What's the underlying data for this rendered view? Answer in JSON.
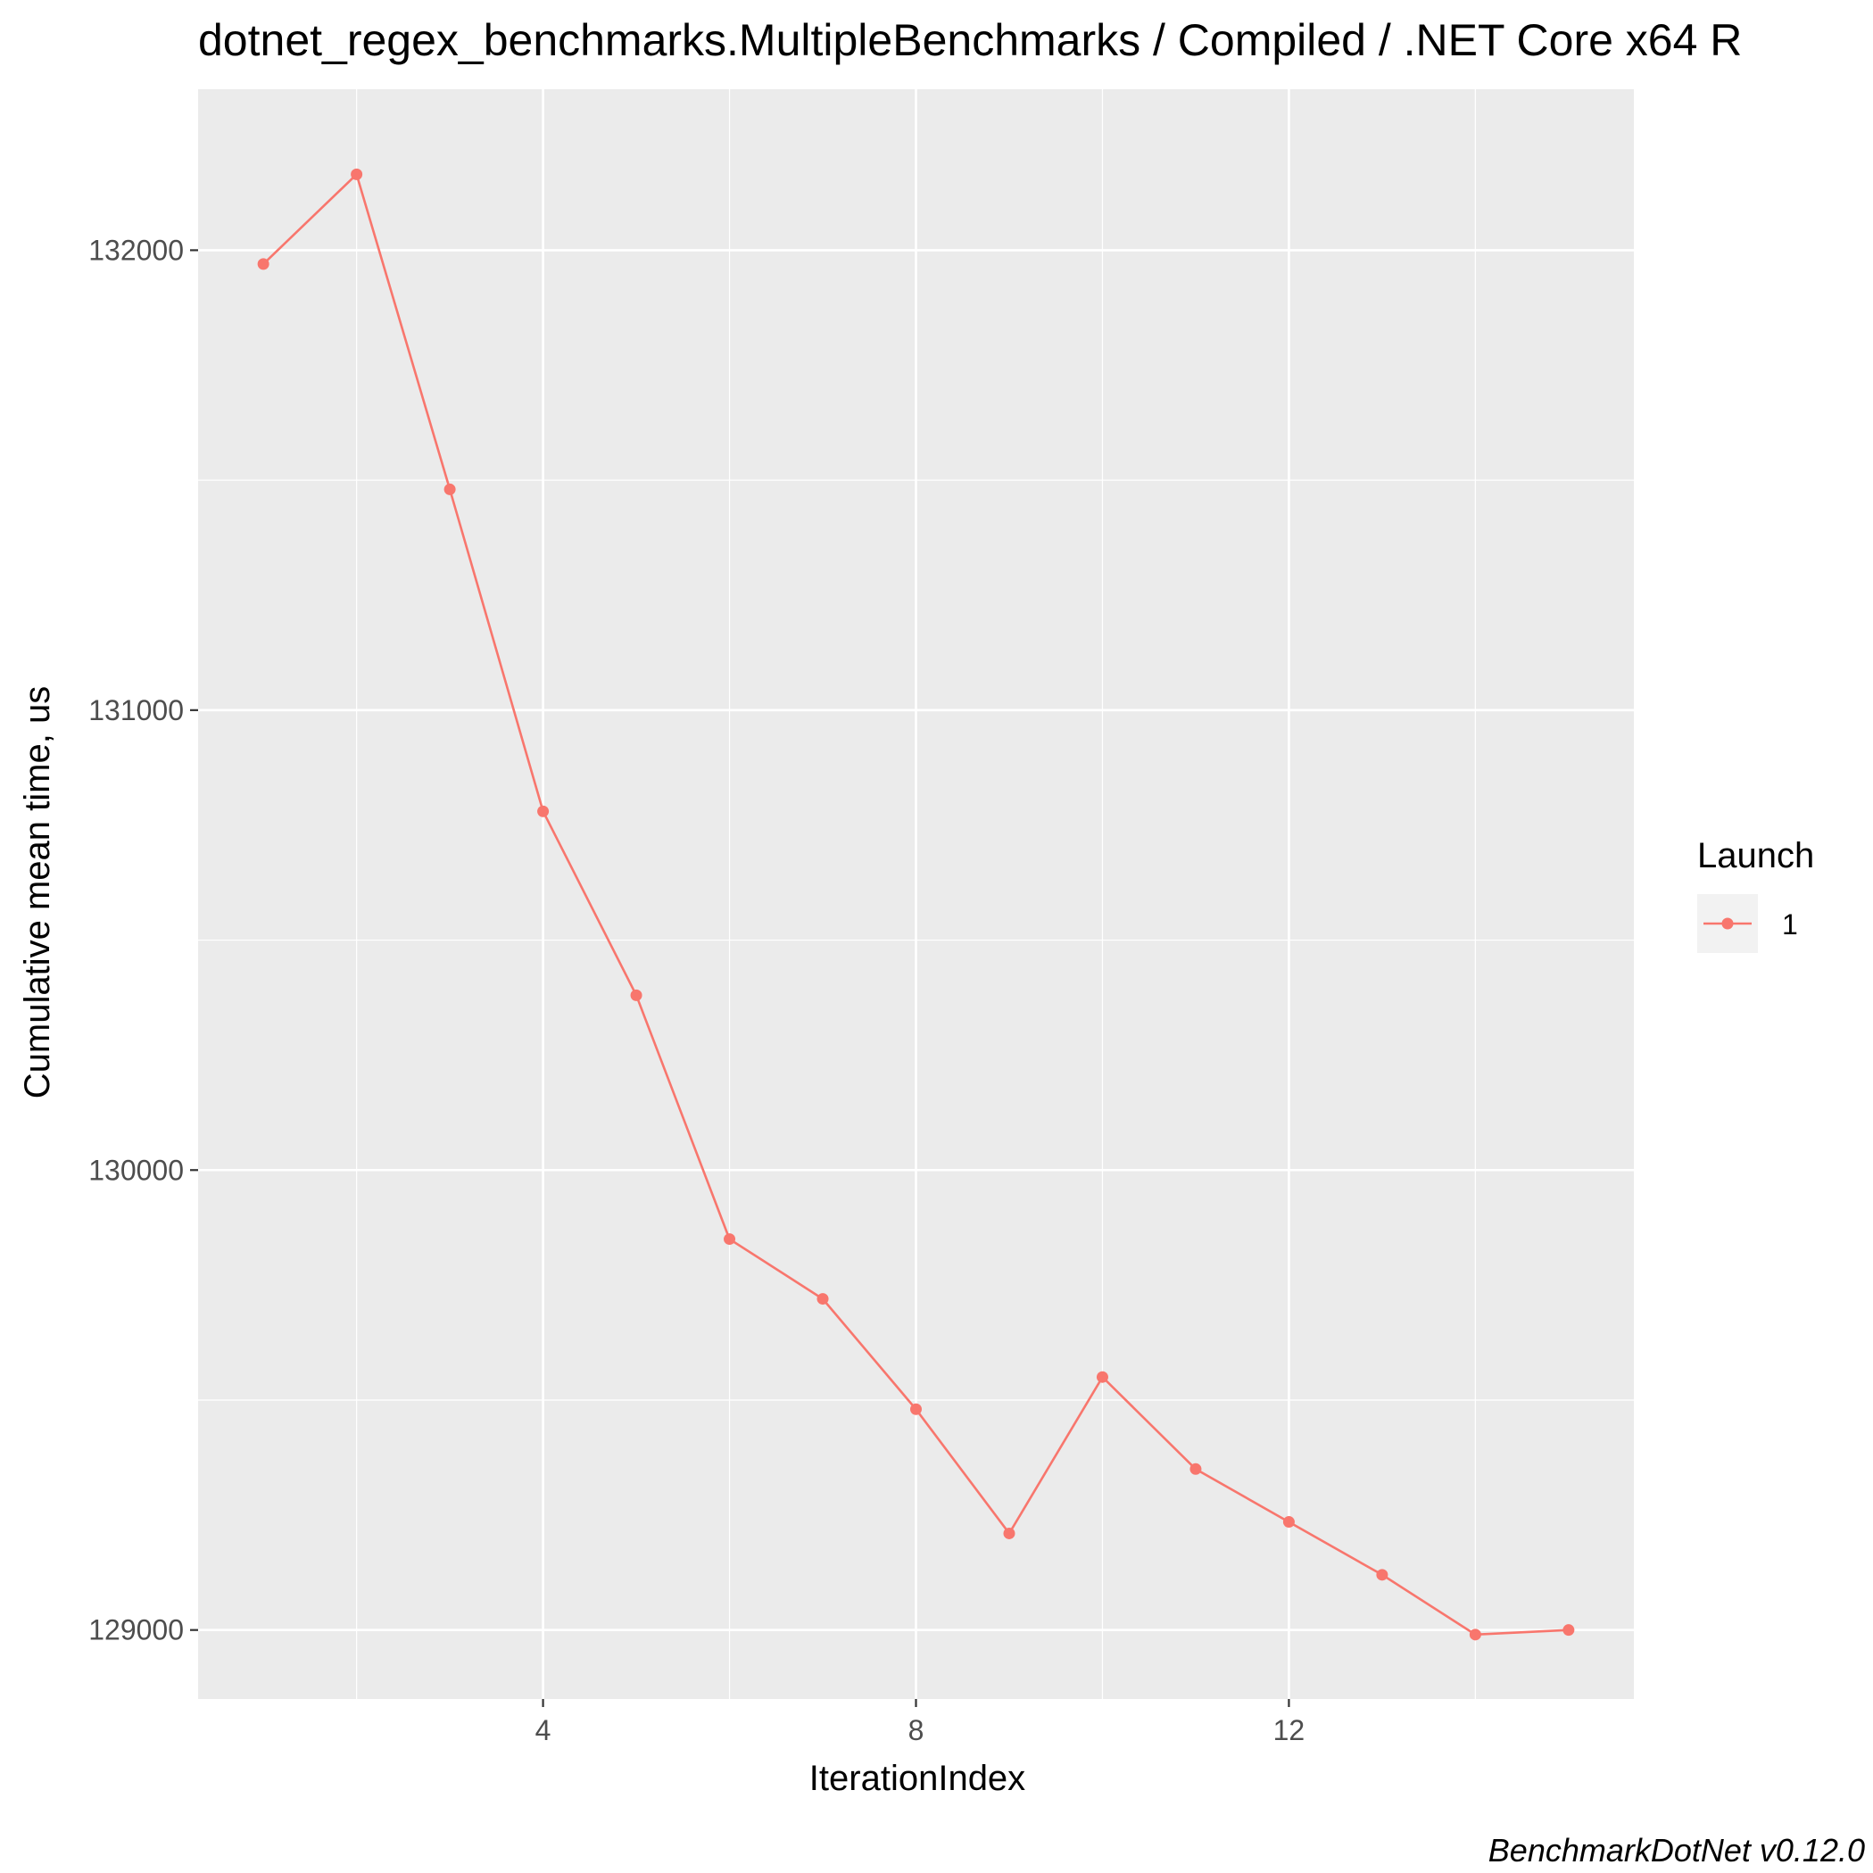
{
  "chart_data": {
    "type": "line",
    "title": "dotnet_regex_benchmarks.MultipleBenchmarks / Compiled / .NET Core x64 R",
    "xlabel": "IterationIndex",
    "ylabel": "Cumulative mean time, us",
    "caption": "BenchmarkDotNet v0.12.0",
    "xlim": [
      0.3,
      15.7
    ],
    "ylim": [
      128850,
      132350
    ],
    "x_ticks": [
      4,
      8,
      12
    ],
    "x_tick_labels": [
      "4",
      "8",
      "12"
    ],
    "y_ticks": [
      129000,
      130000,
      131000,
      132000
    ],
    "y_tick_labels": [
      "129000",
      "130000",
      "131000",
      "132000"
    ],
    "grid": true,
    "legend": {
      "title": "Launch",
      "placement": "right"
    },
    "series": [
      {
        "name": "1",
        "color": "#F8766D",
        "x": [
          1,
          2,
          3,
          4,
          5,
          6,
          7,
          8,
          9,
          10,
          11,
          12,
          13,
          14,
          15
        ],
        "values": [
          131970,
          132165,
          131480,
          130780,
          130380,
          129850,
          129720,
          129480,
          129210,
          129550,
          129350,
          129235,
          129120,
          128990,
          129000
        ]
      }
    ]
  }
}
